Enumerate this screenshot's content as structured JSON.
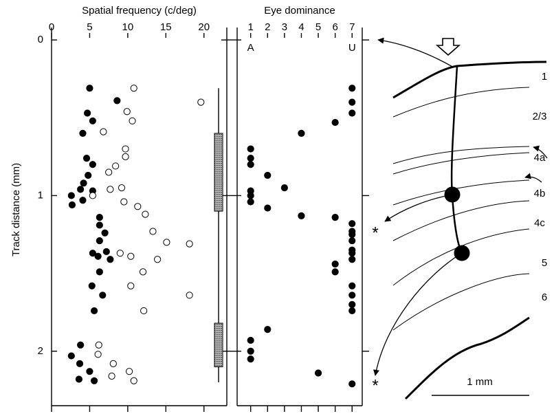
{
  "chart_data": [
    {
      "type": "scatter",
      "title": "Spatial frequency (c/deg)",
      "ylabel": "Track distance (mm)",
      "xlim": [
        0,
        23
      ],
      "xticks": [
        0,
        5,
        10,
        15,
        20
      ],
      "ylim": [
        -0.08,
        2.35
      ],
      "yticks": [
        0,
        1,
        2
      ],
      "y_inverted": true,
      "series": [
        {
          "color": "#000000",
          "marker": "filled",
          "x": [
            5.0,
            8.6,
            4.7,
            5.4,
            4.1,
            4.6,
            5.4,
            4.8,
            4.2,
            3.8,
            2.6,
            5.4,
            2.7,
            4.1,
            6.3,
            6.3,
            7.0,
            6.3,
            7.2,
            5.4,
            7.7,
            6.1,
            6.3,
            5.3,
            6.7,
            5.6,
            3.8,
            2.6,
            3.7,
            3.6,
            5.0,
            5.6
          ],
          "y": [
            0.31,
            0.39,
            0.47,
            0.52,
            0.6,
            0.76,
            0.8,
            0.87,
            0.92,
            0.96,
            1.0,
            0.97,
            1.06,
            1.03,
            1.14,
            1.19,
            1.24,
            1.29,
            1.36,
            1.37,
            1.41,
            1.39,
            1.49,
            1.58,
            1.64,
            1.74,
            1.96,
            2.03,
            2.08,
            2.18,
            2.13,
            2.19
          ]
        },
        {
          "color": "#000000",
          "marker": "open",
          "x": [
            10.8,
            19.6,
            9.9,
            10.6,
            6.8,
            9.7,
            9.7,
            8.4,
            7.5,
            9.2,
            7.7,
            5.4,
            9.5,
            11.3,
            12.3,
            13.3,
            15.1,
            18.1,
            9.0,
            10.4,
            13.9,
            12.0,
            10.4,
            18.1,
            12.1,
            6.2,
            6.1,
            8.1,
            7.9,
            10.2,
            10.8
          ],
          "y": [
            0.31,
            0.4,
            0.46,
            0.52,
            0.59,
            0.7,
            0.75,
            0.81,
            0.85,
            0.95,
            0.96,
            1.0,
            1.04,
            1.07,
            1.12,
            1.23,
            1.3,
            1.31,
            1.37,
            1.39,
            1.41,
            1.49,
            1.58,
            1.64,
            1.74,
            1.96,
            2.02,
            2.08,
            2.16,
            2.13,
            2.19
          ]
        }
      ],
      "bar_line": [
        0.31,
        2.2
      ],
      "bar_ranges": [
        [
          0.6,
          1.1
        ],
        [
          1.82,
          2.1
        ]
      ]
    },
    {
      "type": "scatter",
      "title": "Eye dominance",
      "xlim": [
        0.2,
        7.6
      ],
      "xticks": [
        1,
        2,
        3,
        4,
        5,
        6,
        7
      ],
      "xtick_sublabels": [
        {
          "value": 1,
          "label": "A"
        },
        {
          "value": 7,
          "label": "U"
        }
      ],
      "ylim": [
        -0.08,
        2.35
      ],
      "yticks": [
        0,
        1,
        2
      ],
      "y_inverted": true,
      "series": [
        {
          "color": "#000000",
          "marker": "filled",
          "x": [
            7,
            7,
            7,
            6,
            4,
            1,
            1,
            1,
            2,
            3,
            1,
            1,
            1,
            2,
            4,
            6,
            7,
            7,
            7,
            7,
            7,
            7,
            7,
            6,
            6,
            7,
            7,
            7,
            7,
            2,
            1,
            1,
            1,
            5,
            7
          ],
          "y": [
            0.31,
            0.4,
            0.47,
            0.53,
            0.6,
            0.7,
            0.76,
            0.8,
            0.87,
            0.95,
            0.97,
            1.0,
            1.04,
            1.08,
            1.13,
            1.14,
            1.18,
            1.23,
            1.29,
            1.35,
            1.37,
            1.41,
            1.25,
            1.44,
            1.49,
            1.58,
            1.64,
            1.7,
            1.74,
            1.86,
            1.93,
            2.0,
            2.05,
            2.14,
            2.21
          ]
        }
      ]
    }
  ],
  "diagram": {
    "layers": [
      "1",
      "2/3",
      "4a",
      "4b",
      "4c",
      "5",
      "6"
    ],
    "scale_label": "1 mm",
    "markers": [
      "*",
      "*"
    ]
  }
}
